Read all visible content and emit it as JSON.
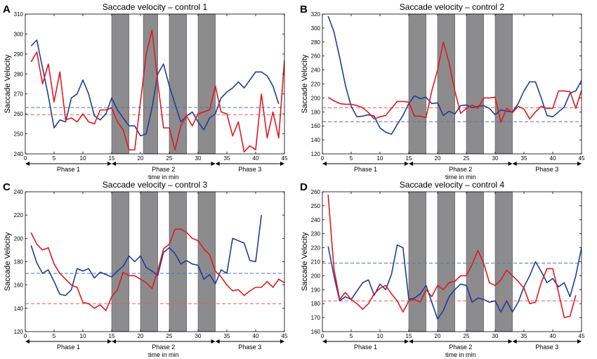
{
  "colors": {
    "blue_series": "#1f3d99",
    "red_series": "#e0191e",
    "stim_band": "#8c8c8e",
    "axis": "#000000",
    "blue_mean": "#5a6fb8",
    "red_mean": "#e85a5a"
  },
  "chart_data": [
    {
      "panel_letter": "A",
      "type": "line",
      "title": "Saccade velocity – control 1",
      "xlabel": "time in min",
      "ylabel": "Saccade Velocity",
      "xlim": [
        0,
        45
      ],
      "ylim": [
        240,
        310
      ],
      "x_ticks": [
        0,
        5,
        10,
        15,
        20,
        25,
        30,
        35,
        40,
        45
      ],
      "y_ticks": [
        240,
        250,
        260,
        270,
        280,
        290,
        300,
        310
      ],
      "stim_bands": [
        [
          15,
          18
        ],
        [
          20.5,
          23
        ],
        [
          25,
          28
        ],
        [
          30,
          33
        ]
      ],
      "phases": [
        {
          "label": "Phase 1",
          "start": 0,
          "end": 15
        },
        {
          "label": "Phase 2",
          "start": 15,
          "end": 33
        },
        {
          "label": "Phase 3",
          "start": 33,
          "end": 45
        }
      ],
      "mean_lines": [
        {
          "series": "blue",
          "value": 263.2
        },
        {
          "series": "red",
          "value": 259.6
        }
      ],
      "series": [
        {
          "name": "blue",
          "x": [
            1,
            2,
            3,
            4,
            5,
            6,
            7,
            8,
            9,
            10,
            11,
            12,
            13,
            14,
            15,
            16,
            17,
            18,
            19,
            20,
            21,
            22,
            23,
            24,
            25,
            26,
            27,
            28,
            29,
            30,
            31,
            32,
            33,
            34,
            35,
            36,
            37,
            38,
            39,
            40,
            41,
            42,
            43,
            44,
            45
          ],
          "values": [
            294,
            297,
            283,
            269,
            253,
            257,
            256,
            268,
            270,
            277,
            270,
            259,
            257,
            260,
            268,
            262,
            258,
            254,
            254,
            249,
            250,
            263,
            280,
            285,
            274,
            265,
            256,
            259,
            261,
            256,
            252,
            258,
            260,
            268,
            271,
            273,
            276,
            273,
            277,
            281,
            281,
            279,
            274,
            265,
            null
          ]
        },
        {
          "name": "red",
          "x": [
            1,
            2,
            3,
            4,
            5,
            6,
            7,
            8,
            9,
            10,
            11,
            12,
            13,
            14,
            15,
            16,
            17,
            18,
            19,
            20,
            21,
            22,
            23,
            24,
            25,
            26,
            27,
            28,
            29,
            30,
            31,
            32,
            33,
            34,
            35,
            36,
            37,
            38,
            39,
            40,
            41,
            42,
            43,
            44,
            45
          ],
          "values": [
            286,
            291,
            275,
            285,
            266,
            281,
            257,
            258,
            256,
            260,
            256,
            255,
            262,
            262,
            263,
            256,
            252,
            242,
            242,
            266,
            290,
            302,
            276,
            253,
            253,
            242,
            254,
            259,
            254,
            260,
            261,
            262,
            274,
            261,
            260,
            249,
            256,
            241,
            244,
            242,
            270,
            248,
            261,
            248,
            287
          ]
        }
      ]
    },
    {
      "panel_letter": "B",
      "type": "line",
      "title": "Saccade velocity – control 2",
      "xlabel": "time in min",
      "ylabel": "Saccade Velocity",
      "xlim": [
        0,
        45
      ],
      "ylim": [
        120,
        320
      ],
      "x_ticks": [
        0,
        5,
        10,
        15,
        20,
        25,
        30,
        35,
        40,
        45
      ],
      "y_ticks": [
        120,
        140,
        160,
        180,
        200,
        220,
        240,
        260,
        280,
        300,
        320
      ],
      "stim_bands": [
        [
          15,
          18
        ],
        [
          20,
          23
        ],
        [
          25,
          28
        ],
        [
          30,
          33
        ]
      ],
      "phases": [
        {
          "label": "Phase 1",
          "start": 0,
          "end": 15
        },
        {
          "label": "Phase 2",
          "start": 15,
          "end": 33
        },
        {
          "label": "Phase 3",
          "start": 33,
          "end": 45
        }
      ],
      "mean_lines": [
        {
          "series": "blue",
          "value": 166
        },
        {
          "series": "red",
          "value": 186
        }
      ],
      "series": [
        {
          "name": "blue",
          "x": [
            1,
            2,
            3,
            4,
            5,
            6,
            7,
            8,
            9,
            10,
            11,
            12,
            13,
            14,
            15,
            16,
            17,
            18,
            19,
            20,
            21,
            22,
            23,
            24,
            25,
            26,
            27,
            28,
            29,
            30,
            31,
            32,
            33,
            34,
            35,
            36,
            37,
            38,
            39,
            40,
            41,
            42,
            43,
            44,
            45
          ],
          "values": [
            317,
            295,
            258,
            218,
            188,
            173,
            174,
            176,
            174,
            157,
            151,
            148,
            162,
            175,
            192,
            203,
            199,
            201,
            192,
            193,
            175,
            181,
            177,
            189,
            190,
            186,
            188,
            189,
            185,
            176,
            183,
            181,
            180,
            192,
            210,
            223,
            223,
            200,
            175,
            173,
            180,
            187,
            207,
            210,
            225
          ]
        },
        {
          "name": "red",
          "x": [
            1,
            2,
            3,
            4,
            5,
            6,
            7,
            8,
            9,
            10,
            11,
            12,
            13,
            14,
            15,
            16,
            17,
            18,
            19,
            20,
            21,
            22,
            23,
            24,
            25,
            26,
            27,
            28,
            29,
            30,
            31,
            32,
            33,
            34,
            35,
            36,
            37,
            38,
            39,
            40,
            41,
            42,
            43,
            44,
            45
          ],
          "values": [
            201,
            196,
            192,
            191,
            191,
            189,
            186,
            179,
            170,
            173,
            175,
            185,
            195,
            195,
            194,
            174,
            174,
            172,
            210,
            240,
            280,
            250,
            210,
            178,
            185,
            190,
            185,
            200,
            200,
            201,
            165,
            185,
            179,
            188,
            184,
            170,
            180,
            188,
            185,
            185,
            210,
            210,
            209,
            185,
            211
          ]
        }
      ]
    },
    {
      "panel_letter": "C",
      "type": "line",
      "title": "Saccade velocity – control 3",
      "xlabel": "time in min",
      "ylabel": "Saccade Velocity",
      "xlim": [
        0,
        45
      ],
      "ylim": [
        120,
        240
      ],
      "x_ticks": [
        0,
        5,
        10,
        15,
        20,
        25,
        30,
        35,
        40,
        45
      ],
      "y_ticks": [
        120,
        140,
        160,
        180,
        200,
        220,
        240
      ],
      "stim_bands": [
        [
          15,
          18
        ],
        [
          20,
          23
        ],
        [
          25,
          28
        ],
        [
          30,
          33
        ]
      ],
      "phases": [
        {
          "label": "Phase 1",
          "start": 0,
          "end": 15
        },
        {
          "label": "Phase 2",
          "start": 15,
          "end": 33
        },
        {
          "label": "Phase 3",
          "start": 33,
          "end": 45
        }
      ],
      "mean_lines": [
        {
          "series": "blue",
          "value": 170
        },
        {
          "series": "red",
          "value": 144
        }
      ],
      "series": [
        {
          "name": "blue",
          "x": [
            1,
            2,
            3,
            4,
            5,
            6,
            7,
            8,
            9,
            10,
            11,
            12,
            13,
            14,
            15,
            16,
            17,
            18,
            19,
            20,
            21,
            22,
            23,
            24,
            25,
            26,
            27,
            28,
            29,
            30,
            31,
            32,
            33,
            34,
            35,
            36,
            37,
            38,
            39,
            40,
            41,
            42,
            43,
            44,
            45
          ],
          "values": [
            194,
            179,
            170,
            173,
            163,
            152,
            151,
            156,
            174,
            172,
            174,
            166,
            171,
            169,
            167,
            172,
            176,
            185,
            180,
            185,
            175,
            172,
            168,
            188,
            192,
            187,
            178,
            181,
            178,
            177,
            165,
            169,
            161,
            173,
            170,
            200,
            198,
            196,
            181,
            180,
            220,
            null,
            null,
            null,
            null
          ]
        },
        {
          "name": "red",
          "x": [
            1,
            2,
            3,
            4,
            5,
            6,
            7,
            8,
            9,
            10,
            11,
            12,
            13,
            14,
            15,
            16,
            17,
            18,
            19,
            20,
            21,
            22,
            23,
            24,
            25,
            26,
            27,
            28,
            29,
            30,
            31,
            32,
            33,
            34,
            35,
            36,
            37,
            38,
            39,
            40,
            41,
            42,
            43,
            44,
            45
          ],
          "values": [
            205,
            195,
            190,
            192,
            178,
            170,
            165,
            160,
            158,
            145,
            144,
            140,
            143,
            138,
            150,
            156,
            171,
            168,
            168,
            165,
            162,
            157,
            172,
            191,
            195,
            208,
            208,
            205,
            200,
            198,
            191,
            186,
            172,
            167,
            160,
            155,
            156,
            151,
            155,
            158,
            158,
            163,
            158,
            165,
            162
          ]
        }
      ]
    },
    {
      "panel_letter": "D",
      "type": "line",
      "title": "Saccade velocity – control 4",
      "xlabel": "time in min",
      "ylabel": "Saccade Velocity",
      "xlim": [
        0,
        45
      ],
      "ylim": [
        160,
        260
      ],
      "x_ticks": [
        0,
        5,
        10,
        15,
        20,
        25,
        30,
        35,
        40,
        45
      ],
      "y_ticks": [
        160,
        170,
        180,
        190,
        200,
        210,
        220,
        230,
        240,
        250,
        260
      ],
      "stim_bands": [
        [
          15,
          18
        ],
        [
          20,
          23
        ],
        [
          25,
          28
        ],
        [
          30,
          33
        ]
      ],
      "phases": [
        {
          "label": "Phase 1",
          "start": 0,
          "end": 15
        },
        {
          "label": "Phase 2",
          "start": 15,
          "end": 33
        },
        {
          "label": "Phase 3",
          "start": 33,
          "end": 45
        }
      ],
      "mean_lines": [
        {
          "series": "blue",
          "value": 209
        },
        {
          "series": "red",
          "value": 182
        }
      ],
      "series": [
        {
          "name": "blue",
          "x": [
            1,
            2,
            3,
            4,
            5,
            6,
            7,
            8,
            9,
            10,
            11,
            12,
            13,
            14,
            15,
            16,
            17,
            18,
            19,
            20,
            21,
            22,
            23,
            24,
            25,
            26,
            27,
            28,
            29,
            30,
            31,
            32,
            33,
            34,
            35,
            36,
            37,
            38,
            39,
            40,
            41,
            42,
            43,
            44,
            45
          ],
          "values": [
            221,
            200,
            182,
            185,
            183,
            189,
            195,
            197,
            186,
            194,
            190,
            201,
            222,
            220,
            183,
            184,
            187,
            193,
            181,
            169,
            175,
            185,
            190,
            194,
            193,
            181,
            184,
            183,
            181,
            182,
            174,
            182,
            174,
            181,
            192,
            200,
            210,
            203,
            195,
            198,
            192,
            195,
            185,
            200,
            220
          ]
        },
        {
          "name": "red",
          "x": [
            1,
            2,
            3,
            4,
            5,
            6,
            7,
            8,
            9,
            10,
            11,
            12,
            13,
            14,
            15,
            16,
            17,
            18,
            19,
            20,
            21,
            22,
            23,
            24,
            25,
            26,
            27,
            28,
            29,
            30,
            31,
            32,
            33,
            34,
            35,
            36,
            37,
            38,
            39,
            40,
            41,
            42,
            43,
            44,
            45
          ],
          "values": [
            258,
            205,
            183,
            188,
            183,
            180,
            176,
            180,
            187,
            191,
            193,
            187,
            182,
            174,
            182,
            183,
            181,
            190,
            185,
            193,
            190,
            195,
            196,
            200,
            200,
            208,
            218,
            209,
            195,
            193,
            197,
            204,
            200,
            196,
            191,
            180,
            181,
            195,
            205,
            205,
            188,
            170,
            171,
            186,
            null
          ]
        }
      ]
    }
  ]
}
